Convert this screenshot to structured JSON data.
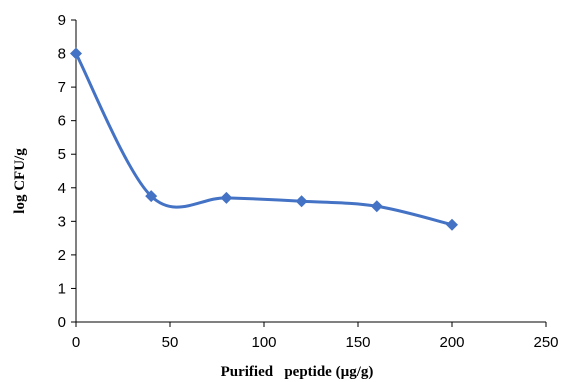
{
  "chart_data": {
    "type": "line",
    "title": "",
    "xlabel": "Purified   peptide (µg/g)",
    "ylabel": "log CFU/g",
    "xlim": [
      0,
      250
    ],
    "ylim": [
      0,
      9
    ],
    "xticks": [
      0,
      50,
      100,
      150,
      200,
      250
    ],
    "yticks": [
      0,
      1,
      2,
      3,
      4,
      5,
      6,
      7,
      8,
      9
    ],
    "grid": false,
    "legend": "none",
    "smooth": true,
    "marker": "diamond",
    "color": "#4472C4",
    "series": [
      {
        "x": [
          0,
          40,
          80,
          120,
          160,
          200
        ],
        "y": [
          8.0,
          3.75,
          3.7,
          3.6,
          3.45,
          2.9
        ]
      }
    ]
  }
}
